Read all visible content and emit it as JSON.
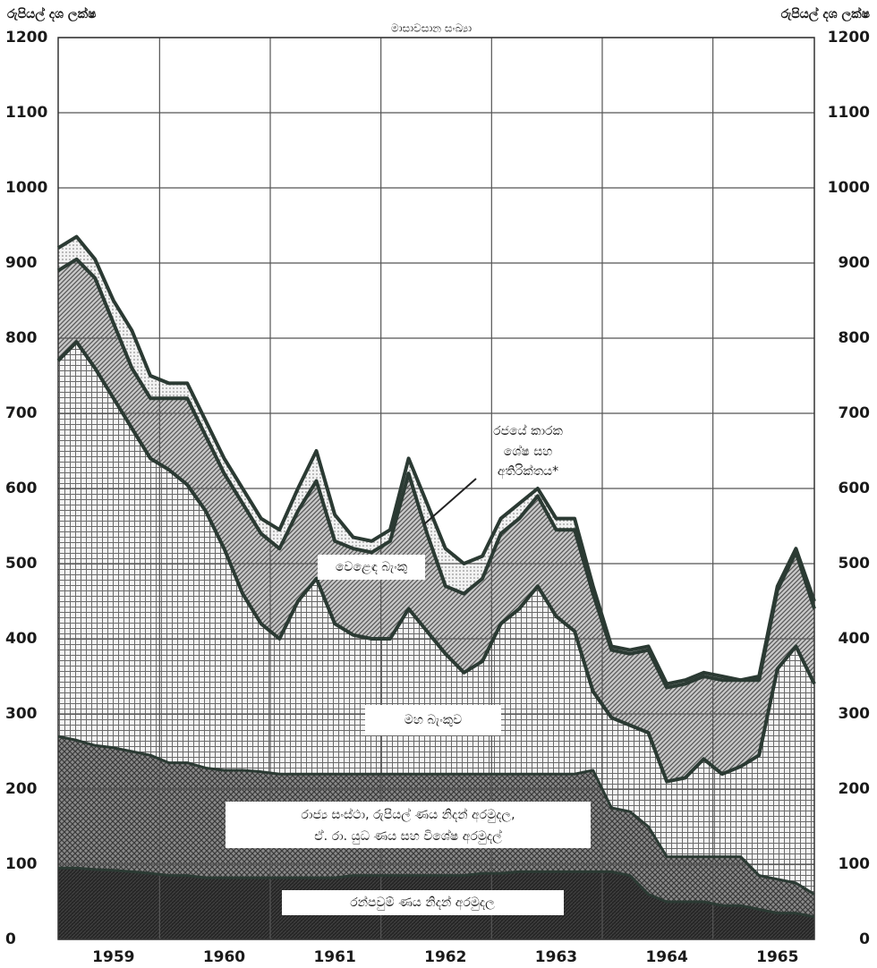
{
  "chart_data": {
    "type": "stacked_area",
    "title": "මාසාවසාන සංඛ්‍යා",
    "y_label": "රුපියල් දශ ලක්ෂ",
    "categories": [
      null,
      null,
      null,
      "1959",
      null,
      null,
      null,
      null,
      null,
      "1960",
      null,
      null,
      null,
      null,
      null,
      "1961",
      null,
      null,
      null,
      null,
      null,
      "1962",
      null,
      null,
      null,
      null,
      null,
      "1963",
      null,
      null,
      null,
      null,
      null,
      "1964",
      null,
      null,
      null,
      null,
      null,
      "1965",
      null,
      null
    ],
    "ylim": [
      0,
      1200
    ],
    "yticks": [
      0,
      100,
      200,
      300,
      400,
      500,
      600,
      700,
      800,
      900,
      1000,
      1100,
      1200
    ],
    "grid": true,
    "series": [
      {
        "name": [
          "රන්පවුම් ණය නිදන් අරමුදල"
        ],
        "color": "#262626",
        "values": [
          95,
          95,
          93,
          92,
          90,
          88,
          85,
          85,
          82,
          82,
          82,
          82,
          82,
          82,
          82,
          82,
          85,
          85,
          85,
          85,
          85,
          85,
          85,
          88,
          88,
          90,
          90,
          90,
          90,
          90,
          90,
          85,
          60,
          50,
          50,
          50,
          45,
          45,
          40,
          35,
          35,
          30
        ]
      },
      {
        "name": [
          "රාජ්‍ය සංස්ථා, රුපියල් ණය නිදන් අරමුදල,",
          "ඒ. රා. යුධ ණය සහ විශේෂ අරමුදල්"
        ],
        "color": "#4a4a4a",
        "values": [
          175,
          170,
          165,
          163,
          160,
          157,
          150,
          150,
          146,
          143,
          143,
          141,
          138,
          138,
          138,
          138,
          135,
          135,
          135,
          135,
          135,
          135,
          135,
          132,
          132,
          130,
          130,
          130,
          130,
          135,
          85,
          85,
          90,
          60,
          60,
          60,
          65,
          65,
          45,
          45,
          40,
          30
        ]
      },
      {
        "name": [
          "මහ බැංකුව"
        ],
        "color": "#6a6a6a",
        "values": [
          500,
          530,
          502,
          465,
          430,
          395,
          390,
          370,
          342,
          295,
          235,
          197,
          180,
          230,
          260,
          200,
          185,
          180,
          180,
          220,
          190,
          160,
          135,
          150,
          200,
          220,
          250,
          210,
          190,
          105,
          120,
          115,
          125,
          100,
          105,
          130,
          110,
          120,
          160,
          280,
          315,
          280
        ]
      },
      {
        "name": [
          "වෙළෙඳ බැංකු"
        ],
        "color": "#555555",
        "values": [
          120,
          110,
          120,
          100,
          80,
          80,
          95,
          115,
          100,
          100,
          120,
          120,
          120,
          120,
          130,
          110,
          115,
          115,
          130,
          180,
          130,
          90,
          105,
          110,
          120,
          120,
          120,
          115,
          135,
          130,
          90,
          95,
          110,
          125,
          125,
          110,
          125,
          115,
          100,
          105,
          125,
          100
        ]
      },
      {
        "name": [
          "රජයේ කාරක",
          "ශේෂ සහ",
          "අතිරික්තය*"
        ],
        "color": "#777777",
        "values": [
          30,
          30,
          25,
          30,
          50,
          30,
          20,
          20,
          20,
          20,
          20,
          20,
          25,
          30,
          40,
          35,
          15,
          15,
          15,
          20,
          40,
          50,
          40,
          30,
          20,
          20,
          10,
          15,
          15,
          10,
          5,
          5,
          5,
          5,
          5,
          5,
          5,
          0,
          5,
          5,
          5,
          10
        ]
      }
    ]
  }
}
